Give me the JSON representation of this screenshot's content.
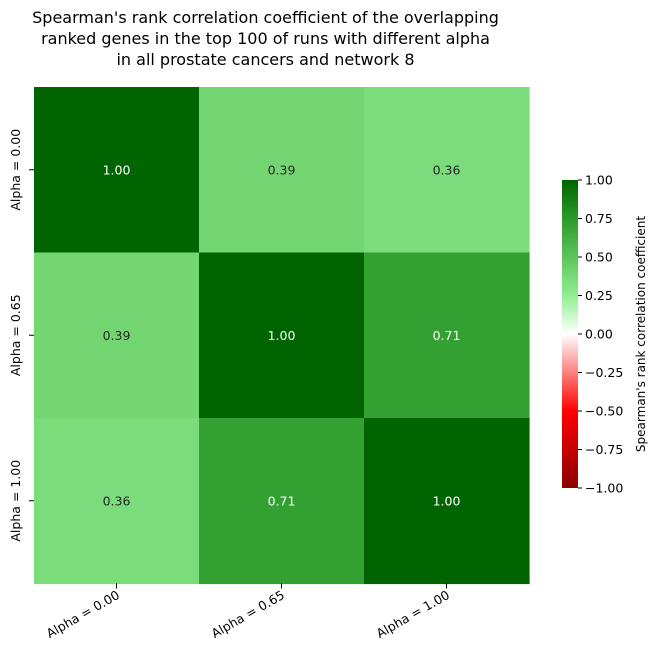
{
  "chart_data": {
    "type": "heatmap",
    "title_lines": [
      "Spearman's rank correlation coefficient of the overlapping",
      "ranked genes in the top 100 of runs with different alpha",
      "in all prostate cancers and network 8"
    ],
    "row_labels": [
      "Alpha = 0.00",
      "Alpha = 0.65",
      "Alpha = 1.00"
    ],
    "col_labels": [
      "Alpha = 0.00",
      "Alpha = 0.65",
      "Alpha = 1.00"
    ],
    "values": [
      [
        1.0,
        0.39,
        0.36
      ],
      [
        0.39,
        1.0,
        0.71
      ],
      [
        0.36,
        0.71,
        1.0
      ]
    ],
    "value_format": "2 decimals",
    "colorbar": {
      "label": "Spearman's rank correlation coefficient",
      "range": [
        -1.0,
        1.0
      ],
      "ticks": [
        "-1.00",
        "-0.75",
        "-0.50",
        "-0.25",
        "0.00",
        "0.25",
        "0.50",
        "0.75",
        "1.00"
      ],
      "colormap": "red-white-green",
      "color_stops": [
        "#8b0000",
        "#ff0000",
        "#ffffff",
        "#90ee90",
        "#008000",
        "#006400"
      ]
    }
  }
}
